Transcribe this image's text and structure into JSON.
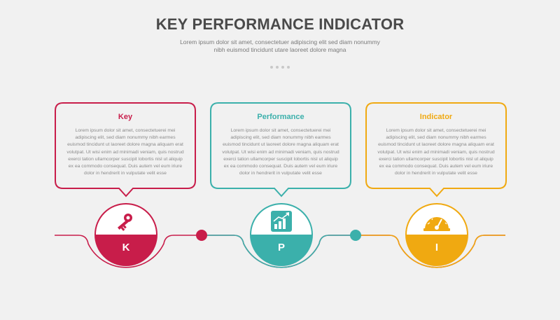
{
  "header": {
    "title": "KEY PERFORMANCE INDICATOR",
    "subtitle": "Lorem ipsum dolor sit amet, consectetuer adipiscing elit sed diam nonummy nibh euismod tincidunt utare laoreet dolore magna"
  },
  "colors": {
    "key": "#c81d4a",
    "performance": "#3bb0ab",
    "indicator": "#f0a911",
    "timeline": "#c81d4a"
  },
  "cards": [
    {
      "title": "Key",
      "body": "Lorem ipsum dolor sit amet, consectetuerei mei adipiscing elit, sed diam nonummy nibh earmes euismod tincidunt ut laoreet dolore magna aliquam erat volutpat. Ut wisi enim ad minimadi veniam, quis nostrud exerci tation ullamcorper suscipit lobortis nisl ut aliquip ex ea commodo consequat. Duis autem vel eum iriure dolor in hendrerit in vulputate velit esse",
      "letter": "K",
      "icon": "key-icon"
    },
    {
      "title": "Performance",
      "body": "Lorem ipsum dolor sit amet, consectetuerei mei adipiscing elit, sed diam nonummy nibh earmes euismod tincidunt ut laoreet dolore magna aliquam erat volutpat. Ut wisi enim ad minimadi veniam, quis nostrud exerci tation ullamcorper suscipit lobortis nisl ut aliquip ex ea commodo consequat. Duis autem vel eum iriure dolor in hendrerit in vulputate velit esse",
      "letter": "P",
      "icon": "growth-chart-icon"
    },
    {
      "title": "Indicator",
      "body": "Lorem ipsum dolor sit amet, consectetuerei mei adipiscing elit, sed diam nonummy nibh earmes euismod tincidunt ut laoreet dolore magna aliquam erat volutpat. Ut wisi enim ad minimadi veniam, quis nostrud exerci tation ullamcorper suscipit lobortis nisl ut aliquip ex ea commodo consequat. Duis autem vel eum iriure dolor in hendrerit in vulputate velit esse",
      "letter": "I",
      "icon": "gauge-icon"
    }
  ]
}
